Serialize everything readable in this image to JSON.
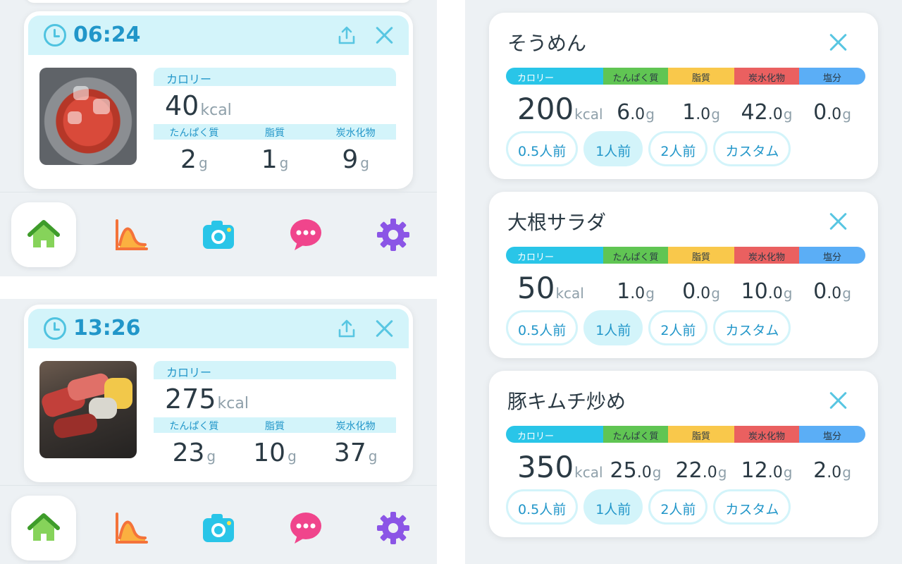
{
  "meals": [
    {
      "time": "06:24",
      "labels": {
        "calorie": "カロリー",
        "protein": "たんぱく質",
        "fat": "脂質",
        "carbs": "炭水化物"
      },
      "calorie": "40",
      "calorie_unit": "kcal",
      "protein": "2",
      "fat": "1",
      "carbs": "9",
      "unit": "g"
    },
    {
      "time": "13:26",
      "labels": {
        "calorie": "カロリー",
        "protein": "たんぱく質",
        "fat": "脂質",
        "carbs": "炭水化物"
      },
      "calorie": "275",
      "calorie_unit": "kcal",
      "protein": "23",
      "fat": "10",
      "carbs": "37",
      "unit": "g"
    }
  ],
  "nav": [
    "home-icon",
    "chart-icon",
    "camera-icon",
    "chat-icon",
    "gear-icon"
  ],
  "nutrient_labels": [
    "カロリー",
    "たんぱく質",
    "脂質",
    "炭水化物",
    "塩分"
  ],
  "portion_options": [
    "0.5人前",
    "1人前",
    "2人前",
    "カスタム"
  ],
  "foods": [
    {
      "name": "そうめん",
      "calorie": "200",
      "calorie_unit": "kcal",
      "protein": "6",
      "fat": "1",
      "carbs": "42",
      "salt": "0",
      "dec": ".0",
      "unit": "g",
      "selected_portion": "1人前"
    },
    {
      "name": "大根サラダ",
      "calorie": "50",
      "calorie_unit": "kcal",
      "protein": "1",
      "fat": "0",
      "carbs": "10",
      "salt": "0",
      "dec": ".0",
      "unit": "g",
      "selected_portion": "1人前"
    },
    {
      "name": "豚キムチ炒め",
      "calorie": "350",
      "calorie_unit": "kcal",
      "protein": "25",
      "fat": "22",
      "carbs": "12",
      "salt": "2",
      "dec": ".0",
      "unit": "g",
      "selected_portion": "1人前"
    }
  ],
  "colors": {
    "accent": "#2196c9",
    "light_accent": "#d3f4fa",
    "calorie": "#29c5e8",
    "protein": "#60c553",
    "fat": "#f9c84b",
    "carbs": "#ea6060",
    "salt": "#5baef6"
  }
}
